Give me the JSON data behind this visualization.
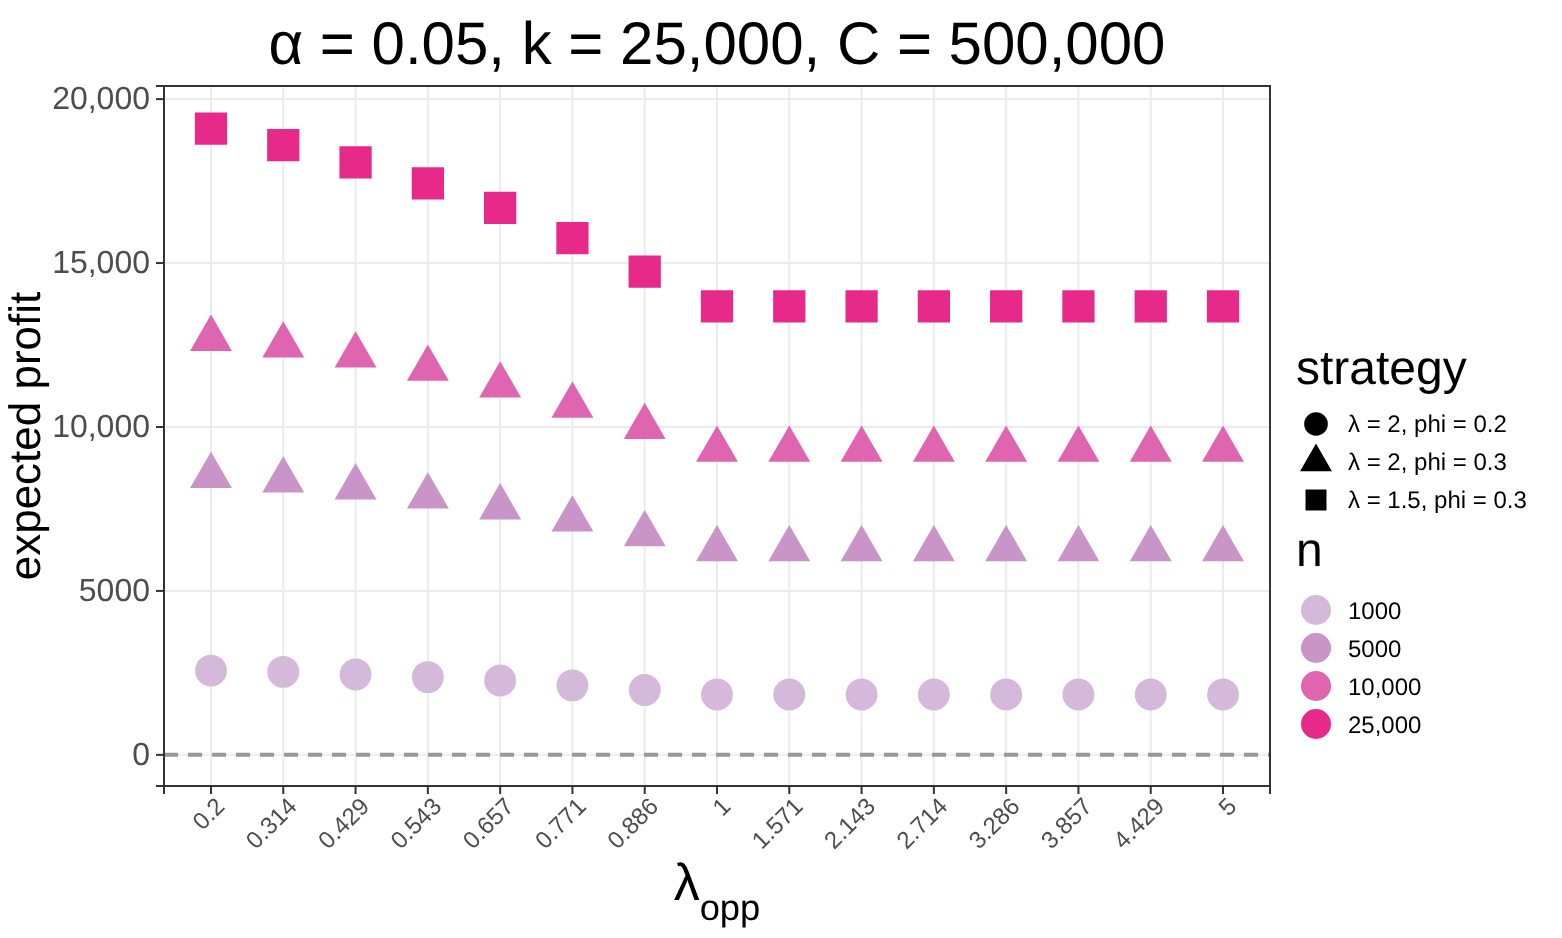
{
  "chart_data": {
    "type": "scatter",
    "title": "α = 0.05, k = 25,000, C = 500,000",
    "xlabel": "λ$_{opp}$",
    "ylabel": "expected profit",
    "legend_title": "n",
    "categories": [
      "0.2",
      "0.314",
      "0.429",
      "0.543",
      "0.657",
      "0.771",
      "0.886",
      "1",
      "1.571",
      "2.143",
      "2.714",
      "3.286",
      "3.857",
      "4.429",
      "5"
    ],
    "series": [
      {
        "name": "1000",
        "color": "#d4b9da",
        "marker": "circle",
        "values": [
          2570,
          2530,
          2450,
          2370,
          2270,
          2120,
          1980,
          1840,
          1840,
          1840,
          1840,
          1840,
          1840,
          1840,
          1840
        ]
      },
      {
        "name": "5000",
        "color": "#c994c7",
        "marker": "triangle",
        "values": [
          8510,
          8370,
          8160,
          7880,
          7550,
          7180,
          6730,
          6270,
          6270,
          6270,
          6270,
          6270,
          6270,
          6270,
          6270
        ]
      },
      {
        "name": "10,000",
        "color": "#df65b0",
        "marker": "triangle",
        "values": [
          12690,
          12490,
          12180,
          11780,
          11270,
          10650,
          10000,
          9310,
          9310,
          9310,
          9310,
          9310,
          9310,
          9310,
          9310
        ]
      },
      {
        "name": "25,000",
        "color": "#e7298a",
        "marker": "square",
        "values": [
          19100,
          18600,
          18070,
          17430,
          16680,
          15760,
          14740,
          13680,
          13680,
          13680,
          13680,
          13680,
          13680,
          13680,
          13680
        ]
      }
    ],
    "ylim": [
      -950,
      20400
    ],
    "yticks": [
      0,
      5000,
      {
        "value": 10000,
        "label": "10,000"
      },
      {
        "value": 15000,
        "label": "15,000"
      },
      {
        "value": 20000,
        "label": "20,000"
      }
    ],
    "grid": true,
    "legend": "right",
    "ref_lines": [
      {
        "axis": "y",
        "value": 0,
        "color": "#999999",
        "line_style": "dashed"
      }
    ],
    "annotations": [
      "strategy",
      "λ = 2, phi = 0.2",
      "λ = 2, phi = 0.3",
      "λ = 1.5, phi = 0.3"
    ]
  }
}
